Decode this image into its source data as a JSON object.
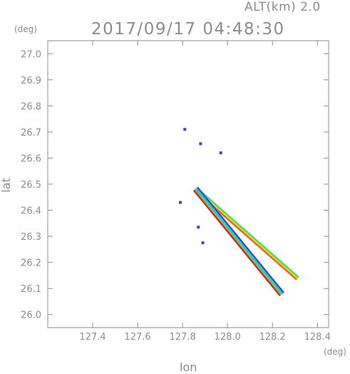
{
  "header": {
    "alt_label": "ALT(km) 2.0",
    "time_label": "2017/09/17 04:48:30"
  },
  "chart_data": {
    "type": "scatter",
    "title": "2017/09/17 04:48:30",
    "subtitle": "ALT(km) 2.0",
    "xlabel": "lon",
    "ylabel": "lat",
    "x_unit": "(deg)",
    "y_unit": "(deg)",
    "xlim": [
      127.2,
      128.45
    ],
    "ylim": [
      25.95,
      27.05
    ],
    "x_ticks": [
      127.4,
      127.6,
      127.8,
      128.0,
      128.2,
      128.4
    ],
    "x_tick_labels": [
      "127.4",
      "127.6",
      "127.8",
      "128.0",
      "128.2",
      "128.4"
    ],
    "y_ticks": [
      26.0,
      26.1,
      26.2,
      26.3,
      26.4,
      26.5,
      26.6,
      26.7,
      26.8,
      26.9,
      27.0
    ],
    "y_tick_labels": [
      "26.0",
      "26.1",
      "26.2",
      "26.3",
      "26.4",
      "26.5",
      "26.6",
      "26.7",
      "26.8",
      "26.9",
      "27.0"
    ],
    "grid": false,
    "colors": {
      "axis": "#8c8c8c",
      "blue": "#3344dd",
      "cyan": "#33bbdd",
      "green": "#44dd66",
      "yellow": "#ccdd22",
      "orange": "#ee6622",
      "red": "#dd2222"
    },
    "clusters": [
      {
        "lon": 127.81,
        "lat": 26.71,
        "color": "blue"
      },
      {
        "lon": 127.88,
        "lat": 26.655,
        "color": "blue"
      },
      {
        "lon": 127.97,
        "lat": 26.62,
        "color": "blue"
      },
      {
        "lon": 127.79,
        "lat": 26.43,
        "color": "blue"
      },
      {
        "lon": 127.87,
        "lat": 26.335,
        "color": "blue"
      },
      {
        "lon": 127.89,
        "lat": 26.275,
        "color": "blue"
      }
    ],
    "bands": [
      {
        "name": "upper",
        "from": [
          127.86,
          26.48
        ],
        "to": [
          128.31,
          26.14
        ],
        "colors": [
          "green",
          "yellow",
          "orange"
        ]
      },
      {
        "name": "lower",
        "from": [
          127.86,
          26.48
        ],
        "to": [
          128.24,
          26.08
        ],
        "colors": [
          "blue",
          "cyan",
          "green",
          "red"
        ]
      }
    ]
  }
}
